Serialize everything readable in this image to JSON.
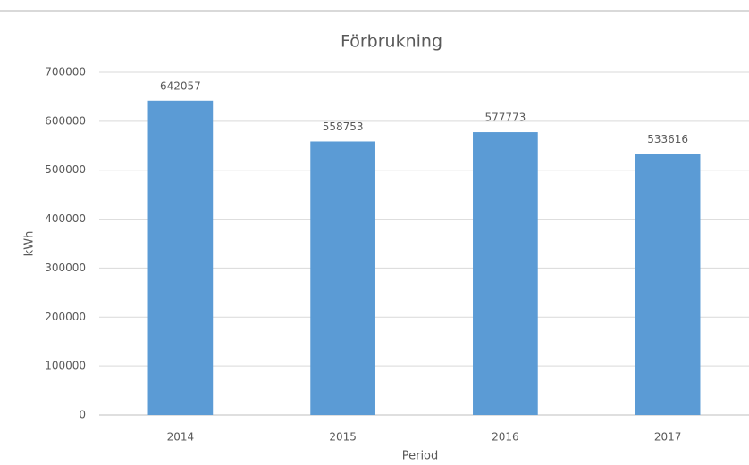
{
  "chart_data": {
    "type": "bar",
    "title": "Förbrukning",
    "x_label": "Period",
    "y_label": "kWh",
    "categories": [
      "2014",
      "2015",
      "2016",
      "2017"
    ],
    "values": [
      642057,
      558753,
      577773,
      533616
    ],
    "color": "#5b9bd5",
    "ylim": [
      0,
      700000
    ],
    "yticks": [
      0,
      100000,
      200000,
      300000,
      400000,
      500000,
      600000,
      700000
    ],
    "grid": true
  }
}
